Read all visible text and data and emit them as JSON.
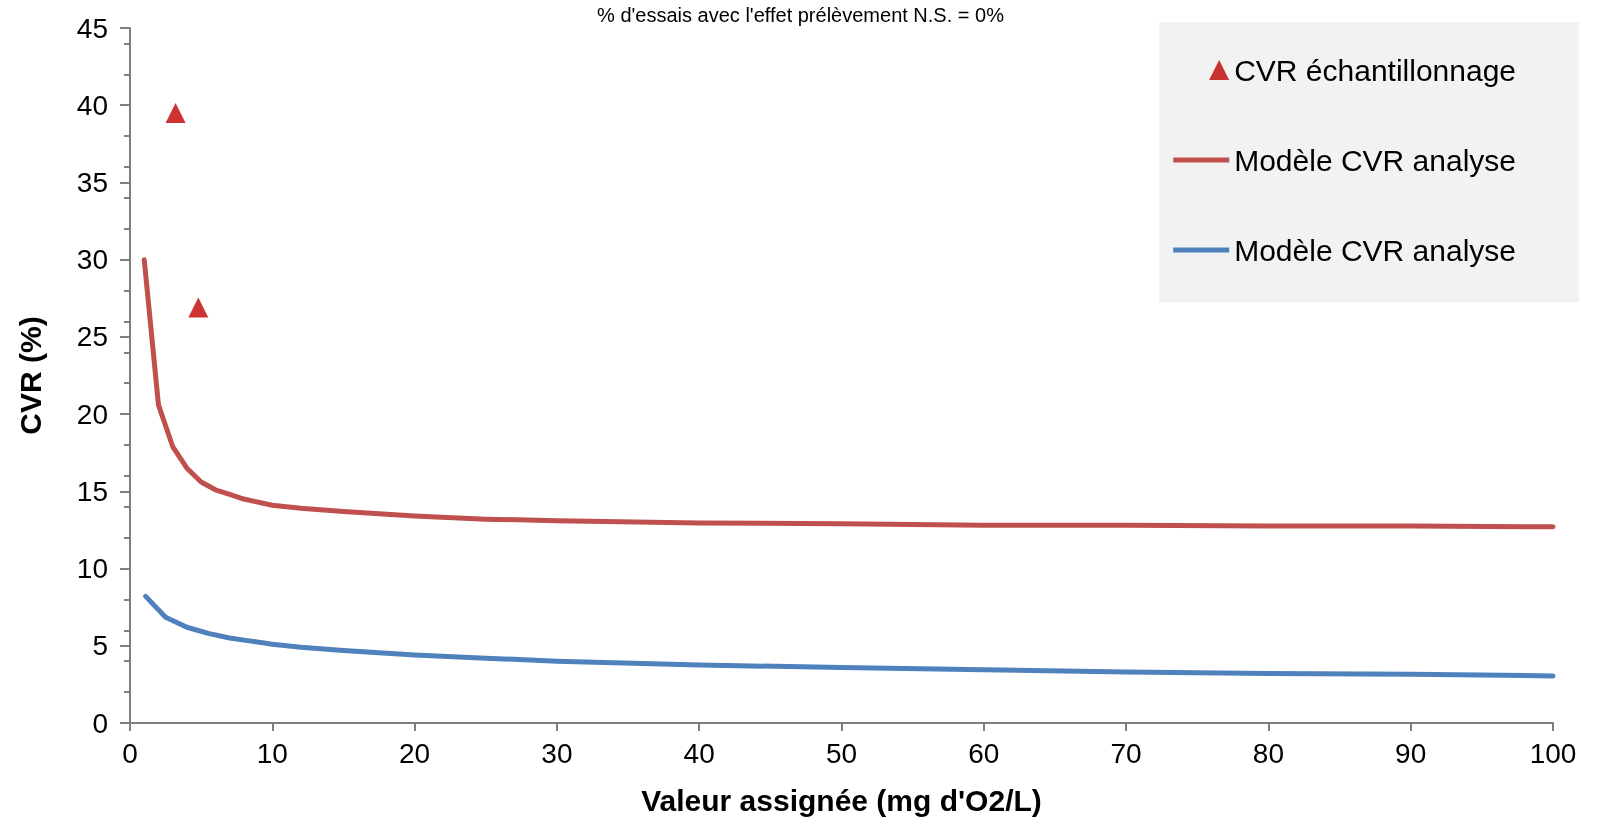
{
  "chart_data": {
    "type": "line",
    "title": "% d'essais avec l'effet prélèvement N.S. = 0%",
    "xlabel": "Valeur assignée (mg d'O2/L)",
    "ylabel": "CVR (%)",
    "xlim": [
      0,
      100
    ],
    "xticks": [
      0,
      10,
      20,
      30,
      40,
      50,
      60,
      70,
      80,
      90,
      100
    ],
    "ylim": [
      0,
      45
    ],
    "yticks": [
      0,
      5,
      10,
      15,
      20,
      25,
      30,
      35,
      40,
      45
    ],
    "grid": false,
    "legend": "top right",
    "line_style": "solid",
    "series": [
      {
        "name": "CVR échantillonnage",
        "type": "scatter",
        "marker": "triangle",
        "color": "#c00000",
        "x": [
          3.2,
          4.8
        ],
        "values": [
          39.5,
          26.9
        ]
      },
      {
        "name": "Modèle CVR analyse",
        "marker": "none",
        "color": "#c0504d",
        "x": [
          1,
          2,
          3,
          4,
          5,
          6,
          7,
          8,
          10,
          12,
          15,
          20,
          25,
          30,
          40,
          50,
          60,
          70,
          80,
          90,
          100
        ],
        "values": [
          30,
          20.6,
          17.9,
          16.5,
          15.6,
          15.1,
          14.8,
          14.5,
          14.1,
          13.9,
          13.7,
          13.4,
          13.2,
          13.1,
          12.95,
          12.9,
          12.8,
          12.8,
          12.75,
          12.75,
          12.7
        ]
      },
      {
        "name": "Modèle CVR analyse",
        "marker": "none",
        "color": "#4f81bd",
        "x": [
          1.1,
          2.5,
          4,
          5.5,
          7,
          8.5,
          10,
          12,
          15,
          20,
          25,
          30,
          40,
          50,
          60,
          70,
          80,
          90,
          100
        ],
        "values": [
          8.2,
          6.85,
          6.2,
          5.8,
          5.5,
          5.3,
          5.1,
          4.9,
          4.7,
          4.4,
          4.2,
          4.0,
          3.75,
          3.6,
          3.45,
          3.3,
          3.2,
          3.15,
          3.05
        ]
      }
    ]
  }
}
